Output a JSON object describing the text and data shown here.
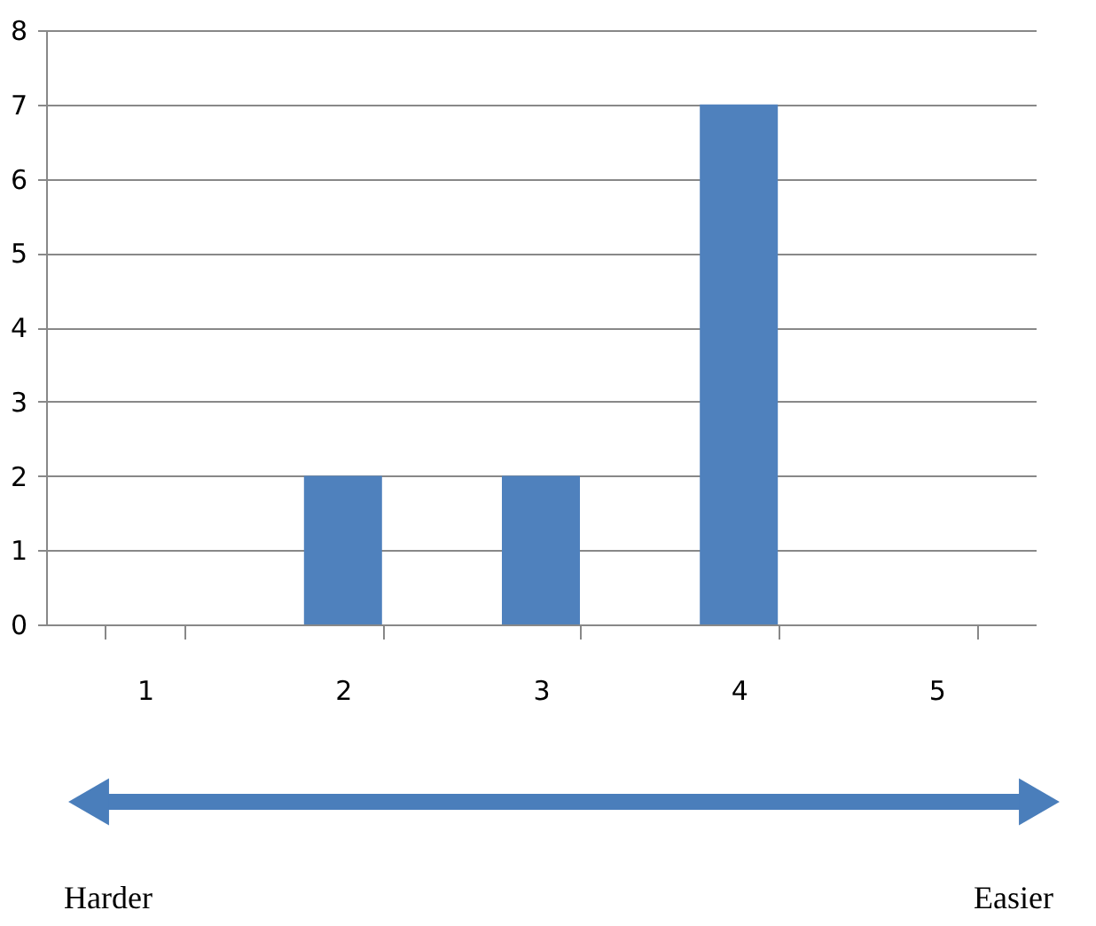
{
  "chart_data": {
    "type": "bar",
    "categories": [
      "1",
      "2",
      "3",
      "4",
      "5"
    ],
    "values": [
      0,
      2,
      2,
      7,
      0
    ],
    "color": "#4f81bd",
    "ylim": [
      0,
      8
    ],
    "yticks": [
      0,
      1,
      2,
      3,
      4,
      5,
      6,
      7,
      8
    ],
    "grid": "y",
    "annotations": [
      "Harder",
      "Easier"
    ]
  }
}
